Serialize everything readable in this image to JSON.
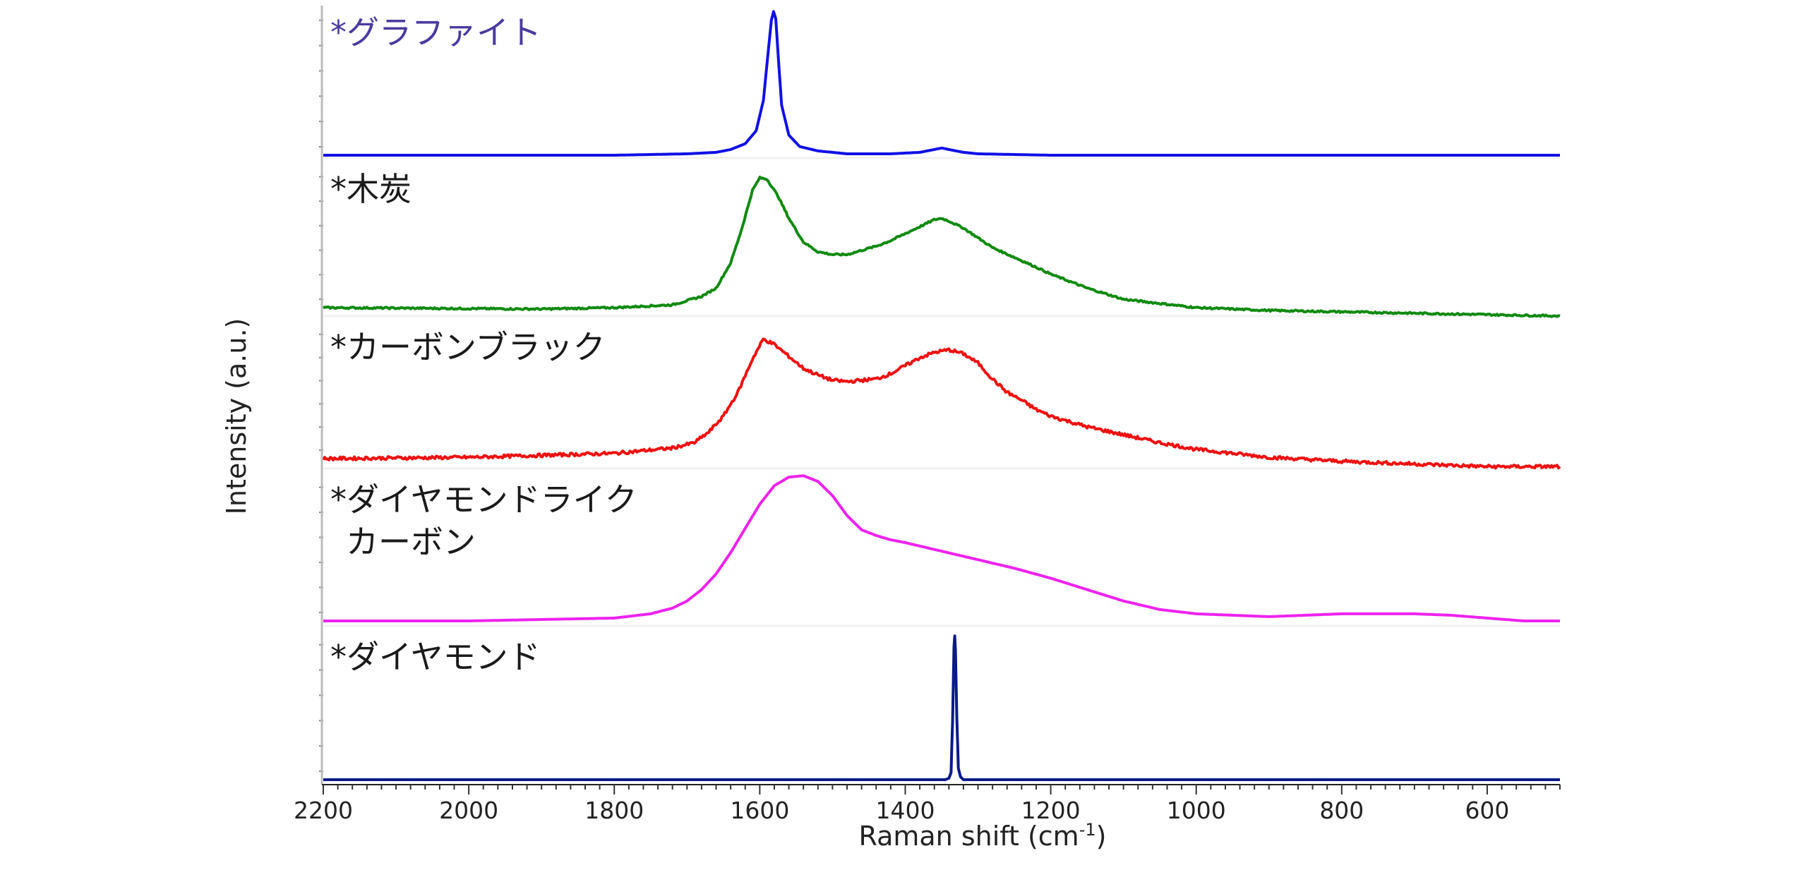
{
  "chart_data": {
    "type": "line",
    "title": "",
    "xlabel": "Raman shift (cm-1)",
    "xlabel_main": "Raman shift (cm",
    "xlabel_sup": "-1",
    "xlabel_close": ")",
    "ylabel": "Intensity (a.u.)",
    "xlim": [
      2200,
      500
    ],
    "x_reversed": true,
    "x_ticks": [
      2200,
      2000,
      1800,
      1600,
      1400,
      1200,
      1000,
      800,
      600
    ],
    "x_tick_labels": [
      "2200",
      "2000",
      "1800",
      "1600",
      "1400",
      "1200",
      "1000",
      "800",
      "600"
    ],
    "layout": "stacked-panels",
    "grid": false,
    "legend": "none",
    "series": [
      {
        "name": "*グラファイト",
        "label_lines": [
          "*グラファイト"
        ],
        "label_color": "#4b3aa0",
        "color": "#1010e6",
        "x": [
          2200,
          1800,
          1700,
          1660,
          1640,
          1620,
          1605,
          1595,
          1588,
          1584,
          1581,
          1578,
          1575,
          1570,
          1560,
          1545,
          1520,
          1480,
          1420,
          1380,
          1360,
          1350,
          1340,
          1320,
          1300,
          1200,
          1000,
          800,
          600,
          500
        ],
        "y": [
          0.0,
          0.0,
          0.01,
          0.02,
          0.04,
          0.08,
          0.17,
          0.38,
          0.74,
          0.94,
          1.0,
          0.95,
          0.72,
          0.35,
          0.14,
          0.06,
          0.03,
          0.01,
          0.01,
          0.02,
          0.04,
          0.05,
          0.04,
          0.02,
          0.01,
          0.0,
          0.0,
          0.0,
          0.0,
          0.0
        ]
      },
      {
        "name": "*木炭",
        "label_lines": [
          "*木炭"
        ],
        "label_color": "#1a1a1a",
        "color": "#118a11",
        "x": [
          2200,
          1900,
          1800,
          1720,
          1680,
          1660,
          1640,
          1625,
          1610,
          1600,
          1590,
          1575,
          1560,
          1540,
          1520,
          1500,
          1480,
          1460,
          1440,
          1420,
          1400,
          1380,
          1360,
          1350,
          1340,
          1320,
          1300,
          1280,
          1250,
          1220,
          1200,
          1150,
          1100,
          1000,
          900,
          800,
          700,
          600,
          500
        ],
        "y": [
          0.0,
          -0.01,
          0.0,
          0.02,
          0.08,
          0.14,
          0.32,
          0.56,
          0.84,
          0.93,
          0.92,
          0.8,
          0.64,
          0.47,
          0.4,
          0.38,
          0.38,
          0.41,
          0.44,
          0.48,
          0.53,
          0.58,
          0.63,
          0.64,
          0.62,
          0.57,
          0.5,
          0.43,
          0.36,
          0.29,
          0.24,
          0.14,
          0.06,
          0.0,
          -0.02,
          -0.03,
          -0.04,
          -0.05,
          -0.06
        ]
      },
      {
        "name": "*カーボンブラック",
        "label_lines": [
          "*カーボンブラック"
        ],
        "label_color": "#1a1a1a",
        "color": "#ee1111",
        "x": [
          2200,
          2000,
          1800,
          1720,
          1690,
          1670,
          1650,
          1630,
          1610,
          1595,
          1580,
          1560,
          1540,
          1520,
          1500,
          1480,
          1460,
          1440,
          1420,
          1400,
          1380,
          1360,
          1340,
          1320,
          1300,
          1280,
          1260,
          1240,
          1220,
          1200,
          1150,
          1100,
          1050,
          1000,
          900,
          800,
          700,
          600,
          500
        ],
        "y": [
          0.0,
          0.01,
          0.04,
          0.08,
          0.12,
          0.2,
          0.32,
          0.5,
          0.75,
          0.9,
          0.86,
          0.77,
          0.68,
          0.63,
          0.59,
          0.58,
          0.59,
          0.6,
          0.64,
          0.7,
          0.76,
          0.8,
          0.82,
          0.79,
          0.72,
          0.6,
          0.5,
          0.44,
          0.37,
          0.32,
          0.24,
          0.18,
          0.12,
          0.07,
          0.01,
          -0.02,
          -0.04,
          -0.06,
          -0.06
        ]
      },
      {
        "name": "*ダイヤモンドライクカーボン",
        "label_lines": [
          "*ダイヤモンドライク",
          "カーボン"
        ],
        "label_color": "#1a1a1a",
        "color": "#ee22ee",
        "x": [
          2200,
          2000,
          1800,
          1750,
          1720,
          1700,
          1680,
          1660,
          1640,
          1620,
          1600,
          1580,
          1560,
          1540,
          1520,
          1500,
          1480,
          1460,
          1440,
          1420,
          1400,
          1350,
          1300,
          1250,
          1200,
          1150,
          1100,
          1050,
          1000,
          950,
          900,
          850,
          800,
          700,
          650,
          600,
          550,
          500
        ],
        "y": [
          0.0,
          0.0,
          0.02,
          0.05,
          0.09,
          0.14,
          0.22,
          0.33,
          0.48,
          0.65,
          0.82,
          0.95,
          1.01,
          1.02,
          0.98,
          0.88,
          0.74,
          0.64,
          0.6,
          0.57,
          0.55,
          0.49,
          0.43,
          0.37,
          0.3,
          0.22,
          0.14,
          0.08,
          0.05,
          0.04,
          0.03,
          0.04,
          0.05,
          0.05,
          0.04,
          0.02,
          0.0,
          0.0
        ]
      },
      {
        "name": "*ダイヤモンド",
        "label_lines": [
          "*ダイヤモンド"
        ],
        "label_color": "#1a1a1a",
        "color": "#0a1a8a",
        "x": [
          2200,
          1500,
          1345,
          1340,
          1337,
          1335,
          1333,
          1332,
          1331,
          1329,
          1327,
          1324,
          1320,
          1300,
          1000,
          500
        ],
        "y": [
          0.0,
          0.0,
          0.0,
          0.01,
          0.05,
          0.4,
          0.92,
          1.0,
          0.9,
          0.42,
          0.08,
          0.02,
          0.0,
          0.0,
          0.0,
          0.0
        ]
      }
    ]
  }
}
